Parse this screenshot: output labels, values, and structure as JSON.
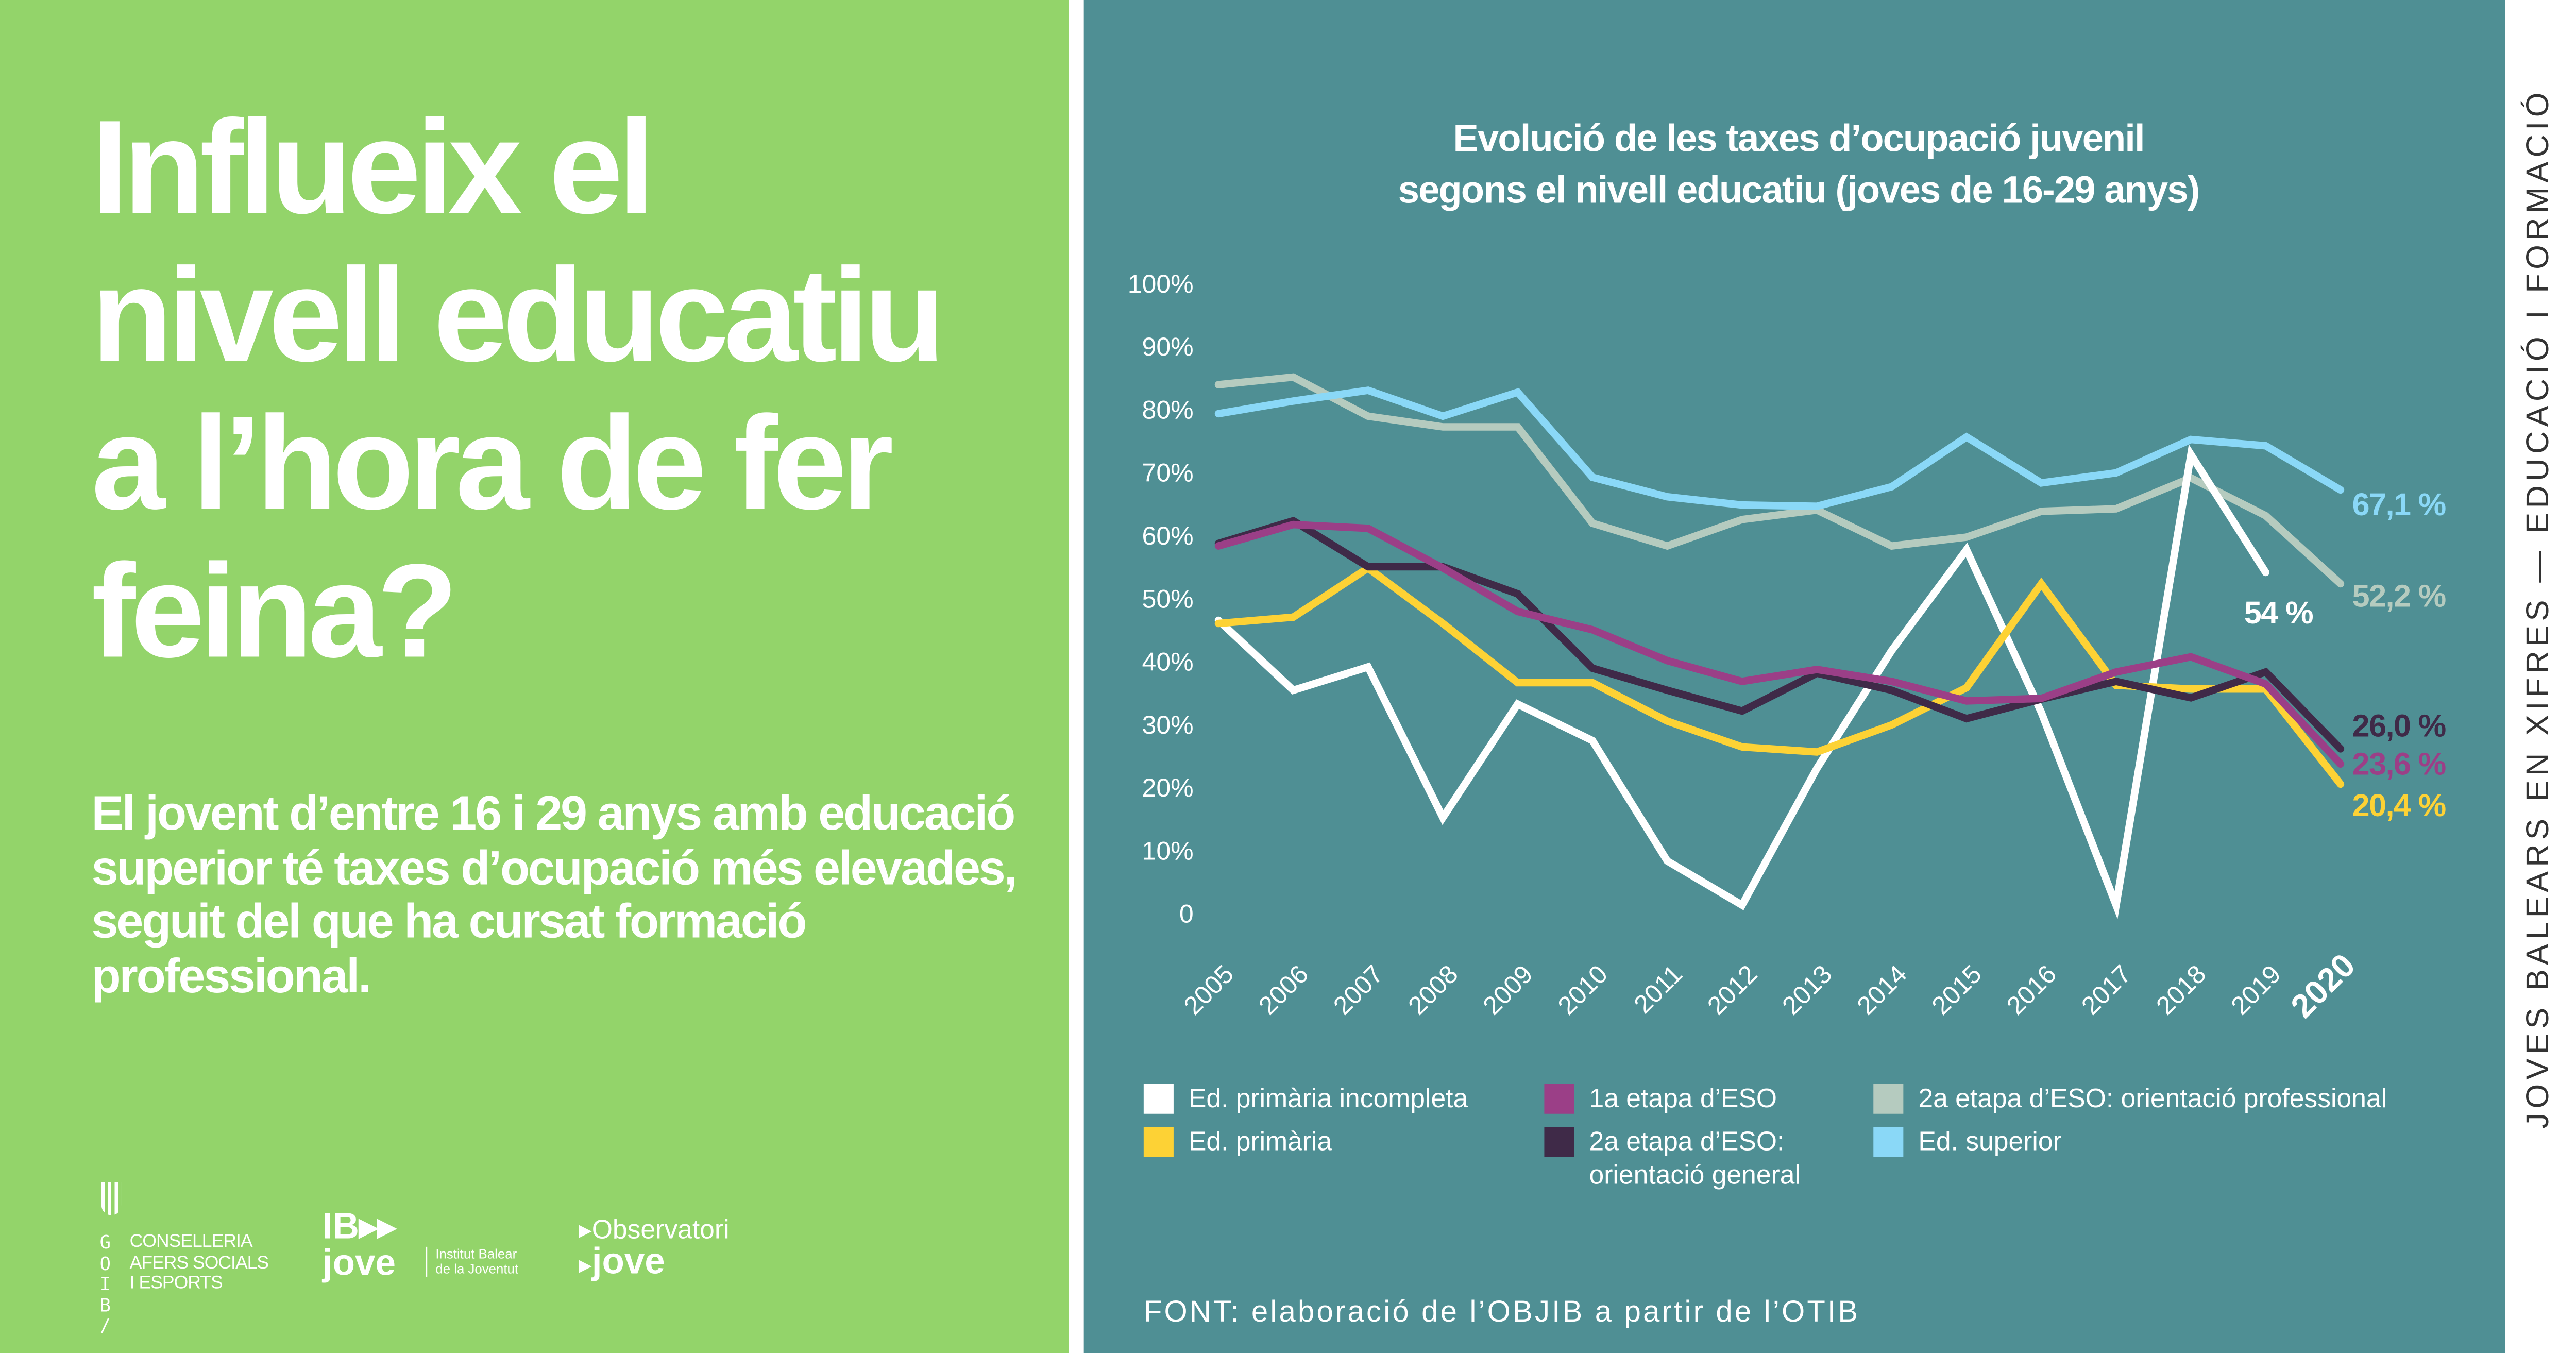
{
  "left_panel": {
    "headline_lines": [
      "Influeix el",
      "nivell educatiu",
      "a l’hora de fer",
      "feina?"
    ],
    "subtitle": "El jovent d’entre 16 i 29 anys amb educació superior té taxes d’ocupació més elevades, seguit del que ha cursat formació professional.",
    "logos": {
      "goib_letters": [
        "G",
        "O",
        "I",
        "B",
        "/"
      ],
      "goib_text": [
        "CONSELLERIA",
        "AFERS SOCIALS",
        "I ESPORTS"
      ],
      "ibjove": {
        "mark": "IB▸▸",
        "word": "jove",
        "subtitle": [
          "Institut Balear",
          "de la Joventut"
        ]
      },
      "observatori": {
        "line1": "Observatori",
        "line2": "jove"
      }
    }
  },
  "side_text": "JOVES BALEARS EN XIFRES — EDUCACIÓ I FORMACIÓ",
  "source": "FONT: elaboració de l’OBJIB a partir de l’OTIB",
  "colors": {
    "green": "#93d46a",
    "teal": "#4f8f94"
  },
  "chart_data": {
    "type": "line",
    "title_lines": [
      "Evolució de les taxes d’ocupació juvenil",
      "segons el nivell educatiu (joves de 16-29 anys)"
    ],
    "x": [
      "2005",
      "2006",
      "2007",
      "2008",
      "2009",
      "2010",
      "2011",
      "2012",
      "2013",
      "2014",
      "2015",
      "2016",
      "2017",
      "2018",
      "2019",
      "2020"
    ],
    "ylim": [
      0,
      100
    ],
    "yticks": [
      "0",
      "10%",
      "20%",
      "30%",
      "40%",
      "50%",
      "60%",
      "70%",
      "80%",
      "90%",
      "100%"
    ],
    "grid": false,
    "legend_position": "bottom",
    "series": [
      {
        "name": "Ed. primària incompleta",
        "color": "#ffffff",
        "end_label": "54 %",
        "values": [
          46.4,
          35.3,
          39.0,
          15.1,
          33.1,
          27.3,
          8.2,
          1.2,
          22.9,
          41.6,
          57.6,
          31.8,
          1.2,
          72.7,
          54.0,
          null
        ]
      },
      {
        "name": "Ed. primària",
        "color": "#fdd235",
        "end_label": "20,4 %",
        "values": [
          45.9,
          46.9,
          54.7,
          45.9,
          36.5,
          36.5,
          30.4,
          26.3,
          25.5,
          29.8,
          35.7,
          52.2,
          36.1,
          35.5,
          35.5,
          20.4
        ]
      },
      {
        "name": "1a etapa d’ESO",
        "color": "#9b3f87",
        "end_label": "23,6 %",
        "values": [
          58.2,
          61.6,
          61.0,
          54.7,
          47.8,
          44.9,
          40.0,
          36.7,
          38.6,
          36.7,
          33.6,
          34.0,
          38.2,
          40.6,
          36.3,
          23.6
        ]
      },
      {
        "name": "2a etapa d’ESO: orientació general",
        "color": "#3f2a48",
        "end_label": "26,0 %",
        "values": [
          58.6,
          62.2,
          54.9,
          54.9,
          50.6,
          38.8,
          35.3,
          32.0,
          38.0,
          35.3,
          30.8,
          33.9,
          36.7,
          34.1,
          38.2,
          26.0
        ]
      },
      {
        "name": "2a etapa d’ESO: orientació professional",
        "color": "#b5cbbf",
        "end_label": "52,2 %",
        "values": [
          83.8,
          85.0,
          78.8,
          77.1,
          77.1,
          61.8,
          58.2,
          62.4,
          63.9,
          58.2,
          59.6,
          63.7,
          64.1,
          69.0,
          63.0,
          52.2
        ]
      },
      {
        "name": "Ed. superior",
        "color": "#8ad8f7",
        "end_label": "67,1 %",
        "values": [
          79.2,
          81.2,
          82.9,
          78.8,
          82.6,
          69.1,
          66.0,
          64.7,
          64.5,
          67.6,
          75.5,
          68.2,
          69.8,
          75.1,
          74.1,
          67.1
        ]
      }
    ]
  }
}
